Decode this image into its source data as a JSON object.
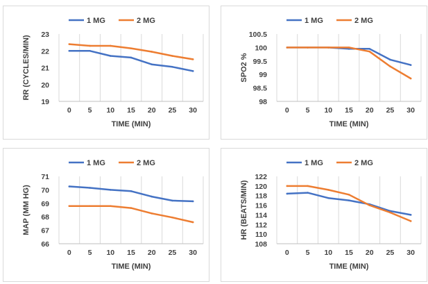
{
  "chart_data": [
    {
      "type": "line",
      "legend_position": "top",
      "grid": "vertical",
      "x": [
        "0",
        "5",
        "10",
        "15",
        "20",
        "25",
        "30"
      ],
      "xlabel": "TIME (MIN)",
      "ylabel": "RR (CYCLES/MIN)",
      "ylim": [
        19,
        23
      ],
      "yticks": [
        "19",
        "20",
        "21",
        "22",
        "23"
      ],
      "series": [
        {
          "name": "1 MG",
          "color": "#4472C4",
          "values": [
            22.0,
            22.0,
            21.7,
            21.6,
            21.2,
            21.05,
            20.8
          ]
        },
        {
          "name": "2 MG",
          "color": "#ED7D31",
          "values": [
            22.4,
            22.3,
            22.3,
            22.15,
            21.95,
            21.7,
            21.5
          ]
        }
      ]
    },
    {
      "type": "line",
      "legend_position": "top",
      "grid": "vertical",
      "x": [
        "0",
        "5",
        "10",
        "15",
        "20",
        "25",
        "30"
      ],
      "xlabel": "TIME (MIN)",
      "ylabel": "SPO2 %",
      "ylim": [
        98,
        100.5
      ],
      "yticks": [
        "98",
        "98.5",
        "99",
        "99.5",
        "100",
        "100.5"
      ],
      "series": [
        {
          "name": "1 MG",
          "color": "#4472C4",
          "values": [
            100.0,
            100.0,
            100.0,
            99.95,
            99.95,
            99.55,
            99.35
          ]
        },
        {
          "name": "2 MG",
          "color": "#ED7D31",
          "values": [
            100.0,
            100.0,
            100.0,
            100.0,
            99.85,
            99.3,
            98.85
          ]
        }
      ]
    },
    {
      "type": "line",
      "legend_position": "top",
      "grid": "vertical",
      "x": [
        "0",
        "5",
        "10",
        "15",
        "20",
        "25",
        "30"
      ],
      "xlabel": "TIME (MIN)",
      "ylabel": "MAP (MM HG)",
      "ylim": [
        66,
        71
      ],
      "yticks": [
        "66",
        "67",
        "68",
        "69",
        "70",
        "71"
      ],
      "series": [
        {
          "name": "1 MG",
          "color": "#4472C4",
          "values": [
            70.25,
            70.15,
            70.0,
            69.9,
            69.5,
            69.2,
            69.15
          ]
        },
        {
          "name": "2 MG",
          "color": "#ED7D31",
          "values": [
            68.8,
            68.8,
            68.8,
            68.65,
            68.25,
            67.95,
            67.6
          ]
        }
      ]
    },
    {
      "type": "line",
      "legend_position": "top",
      "grid": "vertical",
      "x": [
        "0",
        "5",
        "10",
        "15",
        "20",
        "25",
        "30"
      ],
      "xlabel": "TIME (MIN)",
      "ylabel": "HR (BEATS/MIN)",
      "ylim": [
        108,
        122
      ],
      "yticks": [
        "108",
        "110",
        "112",
        "114",
        "116",
        "118",
        "120",
        "122"
      ],
      "series": [
        {
          "name": "1 MG",
          "color": "#4472C4",
          "values": [
            118.4,
            118.6,
            117.5,
            117.0,
            116.2,
            114.8,
            114.0
          ]
        },
        {
          "name": "2 MG",
          "color": "#ED7D31",
          "values": [
            120.0,
            120.0,
            119.2,
            118.2,
            116.0,
            114.5,
            112.7
          ]
        }
      ]
    }
  ]
}
